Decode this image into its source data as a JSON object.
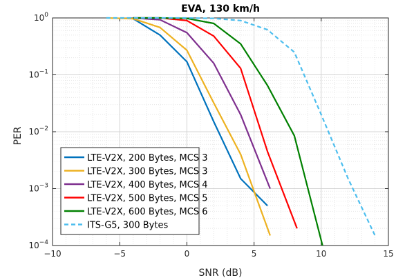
{
  "chart_data": {
    "type": "line",
    "title": "EVA, 130 km/h",
    "xlabel": "SNR (dB)",
    "ylabel": "PER",
    "xlim": [
      -10,
      15
    ],
    "ylim": [
      0.0001,
      1
    ],
    "yscale": "log",
    "grid": true,
    "legend_position": "bottom-left",
    "x_ticks": [
      -10,
      -5,
      0,
      5,
      10,
      15
    ],
    "x_tick_labels": [
      "−10",
      "−5",
      "0",
      "5",
      "10",
      "15"
    ],
    "y_ticks": [
      {
        "value": 1,
        "base": "10",
        "exp": "0"
      },
      {
        "value": 0.1,
        "base": "10",
        "exp": "−1"
      },
      {
        "value": 0.01,
        "base": "10",
        "exp": "−2"
      },
      {
        "value": 0.001,
        "base": "10",
        "exp": "−3"
      },
      {
        "value": 0.0001,
        "base": "10",
        "exp": "−4"
      }
    ],
    "series": [
      {
        "name": "LTE-V2X, 200 Bytes, MCS 3",
        "color": "#0072BD",
        "dash": false,
        "x": [
          -4,
          -2,
          0,
          2,
          4,
          6
        ],
        "y": [
          0.97,
          0.5,
          0.17,
          0.015,
          0.0015,
          0.0005
        ]
      },
      {
        "name": "LTE-V2X, 300 Bytes, MCS 3",
        "color": "#EDB120",
        "dash": false,
        "x": [
          -6,
          -4,
          -2,
          0,
          2,
          4,
          6.2
        ],
        "y": [
          1,
          0.97,
          0.68,
          0.27,
          0.032,
          0.004,
          0.00015
        ]
      },
      {
        "name": "LTE-V2X, 400 Bytes, MCS 4",
        "color": "#7E2F8E",
        "dash": false,
        "x": [
          -4,
          -2,
          0,
          2,
          4,
          6.2
        ],
        "y": [
          1,
          0.93,
          0.55,
          0.16,
          0.02,
          0.001
        ]
      },
      {
        "name": "LTE-V2X, 500 Bytes, MCS 5",
        "color": "#FF0000",
        "dash": false,
        "x": [
          -4,
          -2,
          0,
          2,
          4,
          6,
          8.2
        ],
        "y": [
          1,
          1,
          0.9,
          0.48,
          0.13,
          0.0045,
          0.0002
        ]
      },
      {
        "name": "LTE-V2X, 600 Bytes, MCS 6",
        "color": "#008000",
        "dash": false,
        "x": [
          -4,
          -2,
          0,
          2,
          4,
          6,
          8,
          10.1
        ],
        "y": [
          1,
          1,
          0.98,
          0.8,
          0.35,
          0.065,
          0.0085,
          0.0001
        ]
      },
      {
        "name": "ITS-G5, 300 Bytes",
        "color": "#4DBEEE",
        "dash": true,
        "x": [
          -6,
          -4,
          -2,
          0,
          2,
          4,
          6,
          8,
          10,
          12,
          14
        ],
        "y": [
          1,
          1,
          1,
          1,
          0.98,
          0.9,
          0.62,
          0.25,
          0.02,
          0.0015,
          0.00015
        ]
      }
    ]
  }
}
